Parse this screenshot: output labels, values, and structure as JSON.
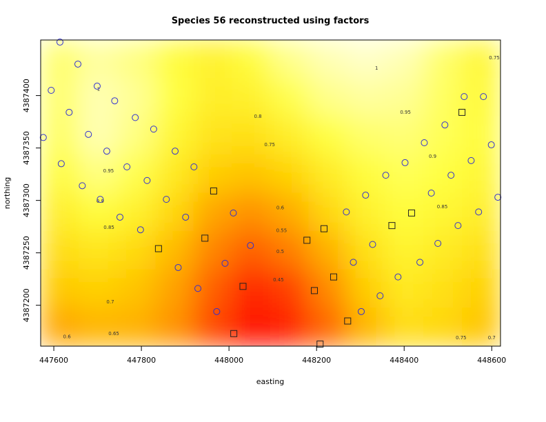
{
  "chart_data": {
    "type": "heatmap",
    "title": "Species 56 reconstructed using factors",
    "x_label": "easting",
    "y_label": "northing",
    "xlim": [
      447570,
      448620
    ],
    "ylim": [
      4387161,
      4387453
    ],
    "xticks": [
      447600,
      447800,
      448000,
      448200,
      448400,
      448600
    ],
    "yticks": [
      4387200,
      4387250,
      4387300,
      4387350,
      4387400
    ],
    "zlim": [
      0.4,
      1.05
    ],
    "colormap": [
      "#ff0000",
      "#ff8000",
      "#ffd000",
      "#ffff40",
      "#ffffe6"
    ],
    "z": [
      [
        0.93,
        0.98,
        0.95,
        0.88,
        0.84,
        0.88,
        0.96,
        1.0,
        1.02,
        1.0,
        0.93,
        0.86
      ],
      [
        0.93,
        1.0,
        0.97,
        0.89,
        0.83,
        0.84,
        0.9,
        0.96,
        0.98,
        0.97,
        0.92,
        0.87
      ],
      [
        0.92,
        1.0,
        0.95,
        0.86,
        0.79,
        0.78,
        0.83,
        0.89,
        0.93,
        0.94,
        0.91,
        0.88
      ],
      [
        0.88,
        0.95,
        0.9,
        0.81,
        0.72,
        0.7,
        0.74,
        0.82,
        0.88,
        0.91,
        0.89,
        0.86
      ],
      [
        0.83,
        0.88,
        0.84,
        0.75,
        0.64,
        0.6,
        0.65,
        0.75,
        0.84,
        0.88,
        0.86,
        0.83
      ],
      [
        0.77,
        0.8,
        0.76,
        0.68,
        0.57,
        0.52,
        0.56,
        0.66,
        0.78,
        0.85,
        0.82,
        0.78
      ],
      [
        0.71,
        0.73,
        0.7,
        0.63,
        0.52,
        0.45,
        0.48,
        0.58,
        0.72,
        0.81,
        0.78,
        0.73
      ],
      [
        0.64,
        0.67,
        0.66,
        0.6,
        0.49,
        0.42,
        0.44,
        0.53,
        0.67,
        0.77,
        0.75,
        0.7
      ]
    ],
    "contour_labels": [
      {
        "text": "1",
        "x": 448337,
        "y": 4387426
      },
      {
        "text": "0.95",
        "x": 448403,
        "y": 4387384
      },
      {
        "text": "0.9",
        "x": 448465,
        "y": 4387342
      },
      {
        "text": "0.85",
        "x": 448487,
        "y": 4387294
      },
      {
        "text": "0.8",
        "x": 448066,
        "y": 4387380
      },
      {
        "text": "0.75",
        "x": 448093,
        "y": 4387353
      },
      {
        "text": "0.6",
        "x": 448117,
        "y": 4387293
      },
      {
        "text": "0.55",
        "x": 448120,
        "y": 4387271
      },
      {
        "text": "0.5",
        "x": 448117,
        "y": 4387251
      },
      {
        "text": "0.45",
        "x": 448113,
        "y": 4387224
      },
      {
        "text": "0.7",
        "x": 447729,
        "y": 4387203
      },
      {
        "text": "0.65",
        "x": 447737,
        "y": 4387173
      },
      {
        "text": "0.6",
        "x": 447630,
        "y": 4387170
      },
      {
        "text": "0.85",
        "x": 447726,
        "y": 4387274
      },
      {
        "text": "0.9",
        "x": 447706,
        "y": 4387299
      },
      {
        "text": "0.95",
        "x": 447725,
        "y": 4387328
      },
      {
        "text": "1",
        "x": 447702,
        "y": 4387406
      },
      {
        "text": "0.75",
        "x": 448530,
        "y": 4387169
      },
      {
        "text": "0.7",
        "x": 448600,
        "y": 4387169
      },
      {
        "text": "0.75",
        "x": 448606,
        "y": 4387436
      }
    ],
    "series": [
      {
        "marker": "circle",
        "color": "#3030d0",
        "x": [
          447614,
          447594,
          447655,
          447699,
          447739,
          447635,
          447786,
          447679,
          447828,
          447576,
          447721,
          447617,
          447767,
          447877,
          447665,
          447813,
          447920,
          447706,
          447857,
          447751,
          447798,
          447901,
          448010,
          447884,
          448049,
          447991,
          447929,
          447972,
          448268,
          448312,
          448358,
          448402,
          448446,
          448493,
          448537,
          448581,
          448599,
          448553,
          448507,
          448462,
          448570,
          448614,
          448523,
          448477,
          448436,
          448386,
          448345,
          448328,
          448284,
          448302
        ],
        "y": [
          4387451,
          4387405,
          4387430,
          4387409,
          4387395,
          4387384,
          4387379,
          4387363,
          4387368,
          4387360,
          4387347,
          4387335,
          4387332,
          4387347,
          4387314,
          4387319,
          4387332,
          4387301,
          4387301,
          4387284,
          4387272,
          4387284,
          4387288,
          4387236,
          4387257,
          4387240,
          4387216,
          4387194,
          4387289,
          4387305,
          4387324,
          4387336,
          4387355,
          4387372,
          4387399,
          4387399,
          4387353,
          4387338,
          4387324,
          4387307,
          4387289,
          4387303,
          4387276,
          4387259,
          4387241,
          4387227,
          4387209,
          4387258,
          4387241,
          4387194
        ]
      },
      {
        "marker": "square",
        "color": "#202020",
        "x": [
          448532,
          448417,
          448372,
          448217,
          448178,
          447945,
          447965,
          447839,
          448032,
          448239,
          448195,
          448271,
          448011,
          448208
        ],
        "y": [
          4387384,
          4387288,
          4387276,
          4387273,
          4387262,
          4387264,
          4387309,
          4387254,
          4387218,
          4387227,
          4387214,
          4387185,
          4387173,
          4387163
        ]
      }
    ]
  }
}
